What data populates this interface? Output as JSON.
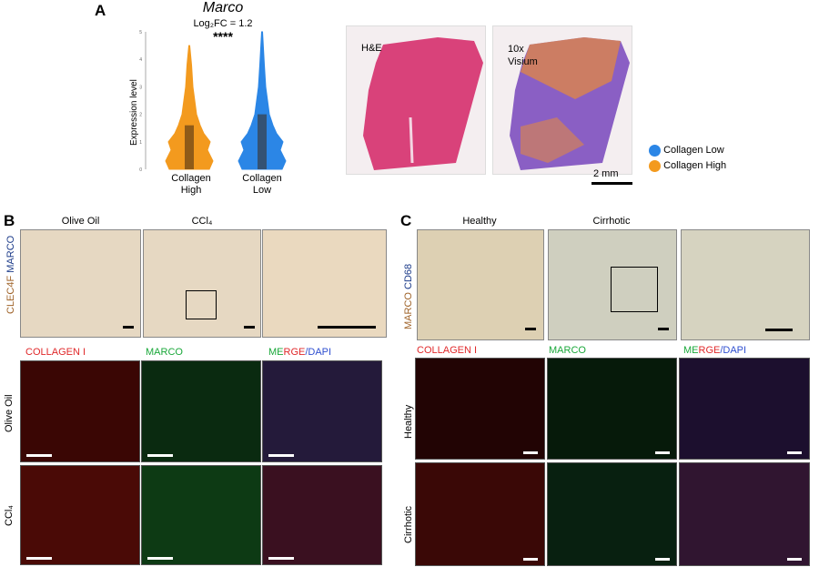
{
  "panelA": {
    "letter": "A",
    "gene": "Marco",
    "log2fc": "Log₂FC = 1.2",
    "significance": "****",
    "ylabel": "Expression level",
    "yticks": [
      "0",
      "1",
      "2",
      "3",
      "4",
      "5"
    ],
    "groups": [
      {
        "label_line1": "Collagen",
        "label_line2": "High",
        "color": "#f39a1e"
      },
      {
        "label_line1": "Collagen",
        "label_line2": "Low",
        "color": "#2b86e6"
      }
    ],
    "he_label": "H&E",
    "visium_label_1": "10x",
    "visium_label_2": "Visium",
    "legend": [
      {
        "label": "Collagen Low",
        "color": "#2b86e6"
      },
      {
        "label": "Collagen High",
        "color": "#f39a1e"
      }
    ],
    "scalebar": "2 mm"
  },
  "chart_data": {
    "type": "violin",
    "title": "Marco",
    "subtitle": "Log₂FC = 1.2",
    "ylabel": "Expression level",
    "ylim": [
      0,
      5
    ],
    "categories": [
      "Collagen High",
      "Collagen Low"
    ],
    "series": [
      {
        "name": "Collagen High",
        "box_q1": 0,
        "box_q3": 1.6,
        "median": 0.9,
        "max": 4.5
      },
      {
        "name": "Collagen Low",
        "box_q1": 0,
        "box_q3": 2.0,
        "median": 1.1,
        "max": 5.0
      }
    ]
  },
  "panelB": {
    "letter": "B",
    "col1": "Olive Oil",
    "col2": "CCl₄",
    "side_label_a": "CLEC4F",
    "side_label_b": "MARCO",
    "fl_head_collagen": "COLLAGEN I",
    "fl_head_marco": "MARCO",
    "fl_head_merge_1": "ME",
    "fl_head_merge_2": "RGE",
    "fl_head_merge_3": "/DAPI",
    "row1": "Olive Oil",
    "row2": "CCl₄"
  },
  "panelC": {
    "letter": "C",
    "col1": "Healthy",
    "col2": "Cirrhotic",
    "side_label_a": "MARCO",
    "side_label_b": "CD68",
    "fl_head_collagen": "COLLAGEN I",
    "fl_head_marco": "MARCO",
    "fl_head_merge_1": "ME",
    "fl_head_merge_2": "RGE",
    "fl_head_merge_3": "/DAPI",
    "row1": "Healthy",
    "row2": "Cirrhotic"
  }
}
